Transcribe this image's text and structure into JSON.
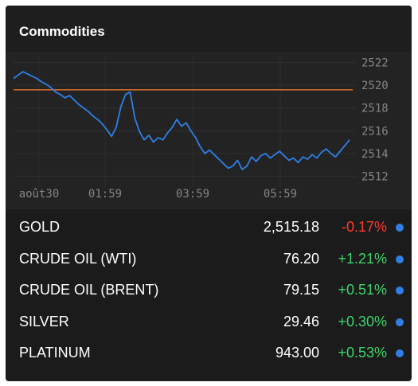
{
  "widget": {
    "title": "Commodities"
  },
  "chart_data": {
    "type": "line",
    "x_ticks": [
      "août30",
      "01:59",
      "03:59",
      "05:59"
    ],
    "y_ticks": [
      2522,
      2520,
      2518,
      2516,
      2514,
      2512
    ],
    "ylim": [
      2511.4,
      2522.6
    ],
    "reference_value": 2519.6,
    "grid": true,
    "colors": {
      "line": "#2f7fe6",
      "reference": "#c86a28",
      "grid": "#2e2e2e"
    },
    "series": [
      {
        "x": [
          0,
          1,
          2,
          3,
          4,
          5,
          6,
          7,
          8,
          9,
          10,
          11,
          12,
          13,
          14,
          15,
          16,
          17,
          18,
          19,
          20,
          21,
          22,
          23,
          24,
          25,
          26,
          27,
          28,
          29,
          30,
          31,
          32,
          33,
          34,
          35,
          36,
          37,
          38,
          39,
          40,
          41,
          42,
          43,
          44,
          45,
          46,
          47,
          48,
          49,
          50,
          51,
          52,
          53,
          54,
          55,
          56,
          57,
          58,
          59,
          60,
          61,
          62,
          63,
          64,
          65,
          66,
          67,
          68,
          69,
          70,
          71,
          72
        ],
        "values": [
          2520.6,
          2520.9,
          2521.2,
          2521.0,
          2520.8,
          2520.6,
          2520.3,
          2520.1,
          2519.8,
          2519.4,
          2519.2,
          2518.9,
          2519.1,
          2518.7,
          2518.3,
          2518.0,
          2517.7,
          2517.3,
          2517.0,
          2516.6,
          2516.1,
          2515.5,
          2516.3,
          2518.1,
          2519.2,
          2519.4,
          2517.1,
          2515.9,
          2515.2,
          2515.6,
          2515.0,
          2515.4,
          2515.2,
          2515.8,
          2516.3,
          2517.0,
          2516.4,
          2516.7,
          2516.0,
          2515.4,
          2514.6,
          2514.0,
          2514.3,
          2513.9,
          2513.5,
          2513.1,
          2512.7,
          2512.9,
          2513.4,
          2512.6,
          2512.9,
          2513.7,
          2513.3,
          2513.8,
          2514.0,
          2513.6,
          2513.9,
          2514.2,
          2513.8,
          2513.4,
          2513.6,
          2513.2,
          2513.7,
          2513.5,
          2513.9,
          2513.6,
          2514.1,
          2514.4,
          2514.0,
          2513.7,
          2514.2,
          2514.7,
          2515.2
        ]
      }
    ]
  },
  "rows": [
    {
      "name": "GOLD",
      "price": "2,515.18",
      "change": "-0.17%",
      "direction": "neg"
    },
    {
      "name": "CRUDE OIL (WTI)",
      "price": "76.20",
      "change": "+1.21%",
      "direction": "pos"
    },
    {
      "name": "CRUDE OIL (BRENT)",
      "price": "79.15",
      "change": "+0.51%",
      "direction": "pos"
    },
    {
      "name": "SILVER",
      "price": "29.46",
      "change": "+0.30%",
      "direction": "pos"
    },
    {
      "name": "PLATINUM",
      "price": "943.00",
      "change": "+0.53%",
      "direction": "pos"
    }
  ]
}
